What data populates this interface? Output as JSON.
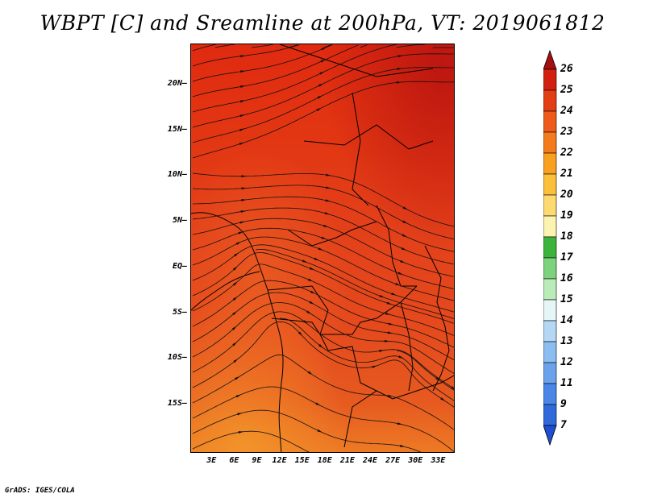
{
  "title": "WBPT [C] and Sreamline at 200hPa, VT: 2019061812",
  "credit": "GrADS: IGES/COLA",
  "map": {
    "lat_ticks": [
      "20N",
      "15N",
      "10N",
      "5N",
      "EQ",
      "5S",
      "10S",
      "15S"
    ],
    "lon_ticks": [
      "3E",
      "6E",
      "9E",
      "12E",
      "15E",
      "18E",
      "21E",
      "24E",
      "27E",
      "30E",
      "33E"
    ],
    "lat_range": [
      -20,
      25
    ],
    "lon_range": [
      0,
      35
    ]
  },
  "colorbar": {
    "labels": [
      "26",
      "25",
      "24",
      "23",
      "22",
      "21",
      "20",
      "19",
      "18",
      "17",
      "16",
      "15",
      "14",
      "13",
      "12",
      "11",
      "9",
      "7"
    ],
    "colors": [
      "#a50f0f",
      "#d21f10",
      "#e23d14",
      "#ee5a1a",
      "#f47a1e",
      "#f8a020",
      "#fbbf3a",
      "#fdd971",
      "#fbf3b0",
      "#3cb43c",
      "#7dd37d",
      "#b9ecb9",
      "#e6f6f6",
      "#b4d7f4",
      "#8cbdf0",
      "#6aa2ec",
      "#4a86e6",
      "#2f69dc",
      "#1e4fd2"
    ]
  }
}
